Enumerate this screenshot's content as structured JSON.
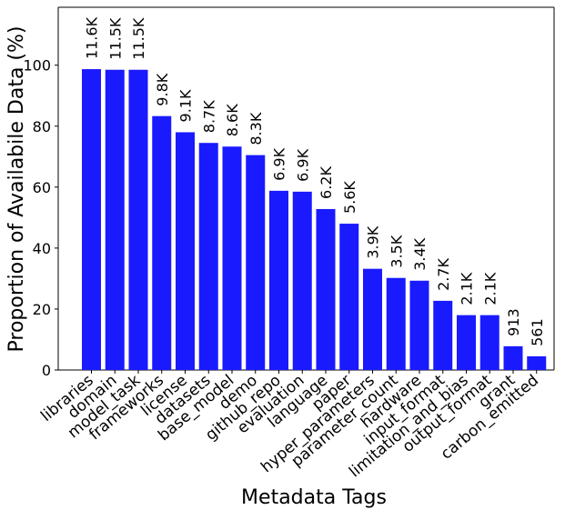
{
  "chart_data": {
    "type": "bar",
    "xlabel": "Metadata Tags",
    "ylabel": "Proportion of Availabile Data (%)",
    "ylim": [
      0,
      119
    ],
    "yticks": [
      0,
      20,
      40,
      60,
      80,
      100
    ],
    "bar_color": "#1a1aff",
    "grid": false,
    "categories": [
      "libraries",
      "domain",
      "model_task",
      "frameworks",
      "license",
      "datasets",
      "base_model",
      "demo",
      "github_repo",
      "evaluation",
      "language",
      "paper",
      "hyper_parameters",
      "parameter_count",
      "hardware",
      "input_format",
      "limitation_and_bias",
      "output_format",
      "grant",
      "carbon_emitted"
    ],
    "values": [
      98.7,
      98.5,
      98.5,
      83.3,
      78.0,
      74.5,
      73.3,
      70.5,
      58.8,
      58.5,
      52.8,
      48.0,
      33.2,
      30.2,
      29.3,
      22.7,
      18.0,
      18.0,
      7.8,
      4.5
    ],
    "data_labels": [
      "11.6K",
      "11.5K",
      "11.5K",
      "9.8K",
      "9.1K",
      "8.7K",
      "8.6K",
      "8.3K",
      "6.9K",
      "6.9K",
      "6.2K",
      "5.6K",
      "3.9K",
      "3.5K",
      "3.4K",
      "2.7K",
      "2.1K",
      "2.1K",
      "913",
      "561"
    ]
  }
}
